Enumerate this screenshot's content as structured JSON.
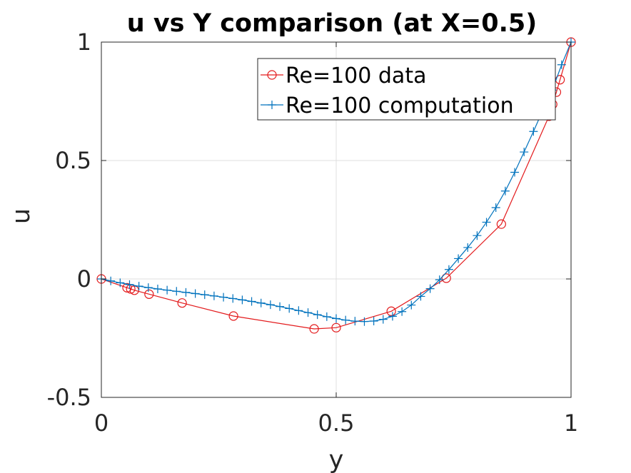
{
  "chart_data": {
    "type": "line",
    "title": "u vs Y comparison (at X=0.5)",
    "xlabel": "y",
    "ylabel": "u",
    "xlim": [
      0,
      1
    ],
    "ylim": [
      -0.5,
      1
    ],
    "xticks": [
      0,
      0.5,
      1
    ],
    "xtick_labels": [
      "0",
      "0.5",
      "1"
    ],
    "yticks": [
      -0.5,
      0,
      0.5,
      1
    ],
    "ytick_labels": [
      "-0.5",
      "0",
      "0.5",
      "1"
    ],
    "grid": true,
    "legend_position": "top-right",
    "series": [
      {
        "name": "Re=100 data",
        "color": "#e31a1c",
        "marker": "circle",
        "x": [
          0,
          0.0547,
          0.0625,
          0.0703,
          0.1016,
          0.1719,
          0.2813,
          0.4531,
          0.5,
          0.6172,
          0.7344,
          0.8516,
          0.9531,
          0.9609,
          0.9688,
          0.9766,
          1.0
        ],
        "y": [
          0,
          -0.0372,
          -0.0419,
          -0.0477,
          -0.0643,
          -0.1015,
          -0.1566,
          -0.2109,
          -0.2058,
          -0.1364,
          0.0033,
          0.2315,
          0.6872,
          0.7372,
          0.7887,
          0.8412,
          1.0
        ]
      },
      {
        "name": "Re=100 computation",
        "color": "#0072bd",
        "marker": "plus",
        "x": [
          0,
          0.02,
          0.04,
          0.06,
          0.08,
          0.1,
          0.12,
          0.14,
          0.16,
          0.18,
          0.2,
          0.22,
          0.24,
          0.26,
          0.28,
          0.3,
          0.32,
          0.34,
          0.36,
          0.38,
          0.4,
          0.42,
          0.44,
          0.46,
          0.48,
          0.5,
          0.52,
          0.54,
          0.56,
          0.58,
          0.6,
          0.62,
          0.64,
          0.66,
          0.68,
          0.7,
          0.72,
          0.74,
          0.76,
          0.78,
          0.8,
          0.82,
          0.84,
          0.86,
          0.88,
          0.9,
          0.92,
          0.94,
          0.96,
          0.98,
          1.0
        ],
        "y": [
          0,
          -0.0082,
          -0.0163,
          -0.0238,
          -0.0306,
          -0.0366,
          -0.0421,
          -0.0472,
          -0.0521,
          -0.0569,
          -0.0617,
          -0.0666,
          -0.0717,
          -0.077,
          -0.0826,
          -0.0885,
          -0.0948,
          -0.1016,
          -0.1089,
          -0.1166,
          -0.1248,
          -0.1334,
          -0.1421,
          -0.1509,
          -0.1594,
          -0.1672,
          -0.1737,
          -0.1782,
          -0.1798,
          -0.1776,
          -0.1706,
          -0.1577,
          -0.1379,
          -0.1102,
          -0.0736,
          -0.0411,
          -0.0035,
          0.0398,
          0.086,
          0.1327,
          0.1831,
          0.2396,
          0.3012,
          0.3713,
          0.4502,
          0.536,
          0.6228,
          0.7128,
          0.7979,
          0.9044,
          1.0
        ]
      }
    ]
  }
}
